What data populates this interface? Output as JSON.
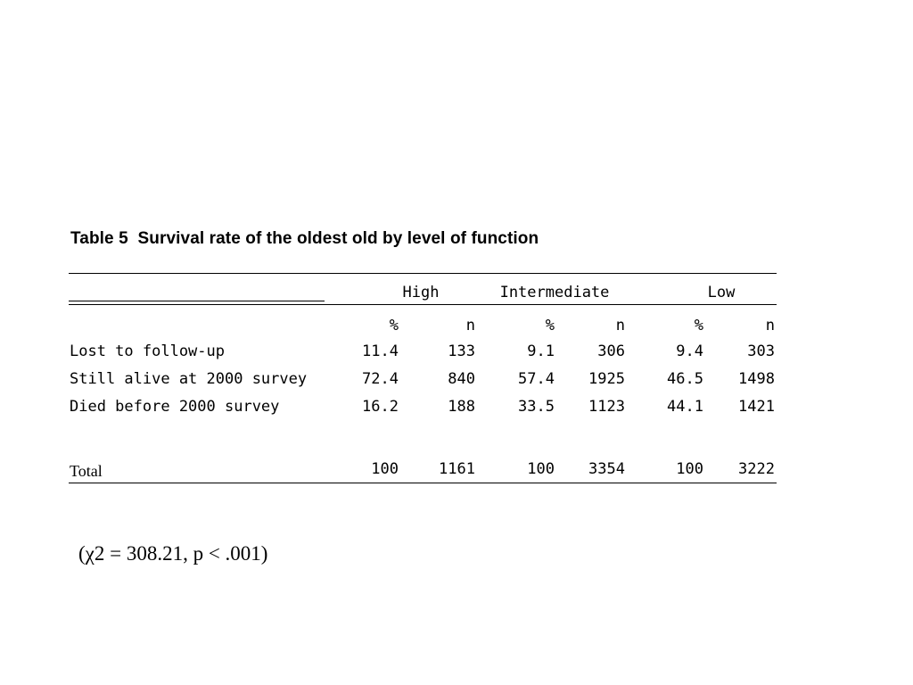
{
  "title": "Table 5  Survival rate of the oldest old by level of function",
  "table": {
    "groups": [
      "High",
      "Intermediate",
      "Low"
    ],
    "subheaders": [
      "%",
      "n",
      "%",
      "n",
      "%",
      "n"
    ],
    "rows": [
      {
        "label": "Lost to follow-up",
        "values": [
          "11.4",
          "133",
          "9.1",
          "306",
          "9.4",
          "303"
        ]
      },
      {
        "label": "Still alive at 2000 survey",
        "values": [
          "72.4",
          "840",
          "57.4",
          "1925",
          "46.5",
          "1498"
        ]
      },
      {
        "label": "Died before 2000 survey",
        "values": [
          "16.2",
          "188",
          "33.5",
          "1123",
          "44.1",
          "1421"
        ]
      }
    ],
    "total": {
      "label": "Total",
      "values": [
        "100",
        "1161",
        "100",
        "3354",
        "100",
        "3222"
      ]
    }
  },
  "footnote": "(χ2 = 308.21, p < .001)"
}
